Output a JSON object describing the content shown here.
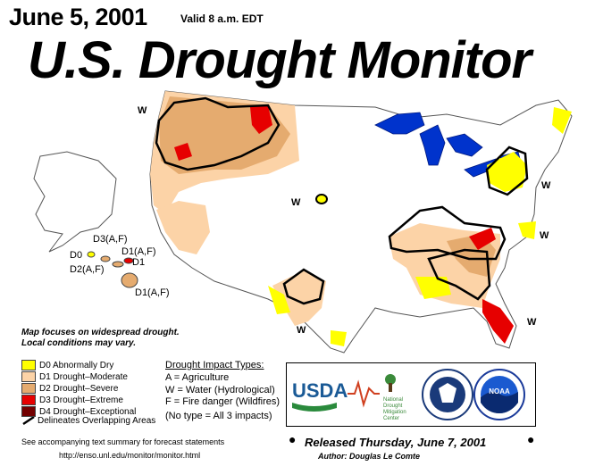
{
  "header": {
    "date": "June 5, 2001",
    "valid": "Valid 8 a.m. EDT",
    "title": "U.S. Drought Monitor"
  },
  "map_labels": {
    "w_northwest": "W",
    "w_central": "W",
    "w_texas": "W",
    "w_northeast": "W",
    "w_midatlantic": "W",
    "w_florida": "W"
  },
  "hawaii_labels": {
    "d3": "D3(A,F)",
    "d0": "D0",
    "d1af_a": "D1(A,F)",
    "d2af": "D2(A,F)",
    "d1": "D1",
    "d1af_b": "D1(A,F)"
  },
  "notes": {
    "line1": "Map focuses on widespread drought.",
    "line2": "Local conditions may vary."
  },
  "legend": {
    "items": [
      {
        "label": "D0 Abnormally Dry",
        "color": "#ffff00"
      },
      {
        "label": "D1 Drought–Moderate",
        "color": "#fcd3a7"
      },
      {
        "label": "D2 Drought–Severe",
        "color": "#e5ab6f"
      },
      {
        "label": "D3 Drought–Extreme",
        "color": "#e60000"
      },
      {
        "label": "D4 Drought–Exceptional",
        "color": "#730000"
      }
    ],
    "boundary_label": "Delineates Overlapping Areas"
  },
  "impacts": {
    "title": "Drought Impact Types:",
    "a": "A = Agriculture",
    "w": "W = Water (Hydrological)",
    "f": "F = Fire danger (Wildfires)",
    "none": "(No type = All 3 impacts)"
  },
  "logos": {
    "usda": "USDA",
    "ndmc_line1": "National",
    "ndmc_line2": "Drought",
    "ndmc_line3": "Mitigation",
    "ndmc_line4": "Center",
    "noaa": "NOAA"
  },
  "footer": {
    "summary": "See accompanying text summary for forecast statements",
    "url": "http://enso.unl.edu/monitor/monitor.html",
    "released": "Released Thursday, June 7, 2001",
    "author": "Author:  Douglas Le Comte"
  }
}
